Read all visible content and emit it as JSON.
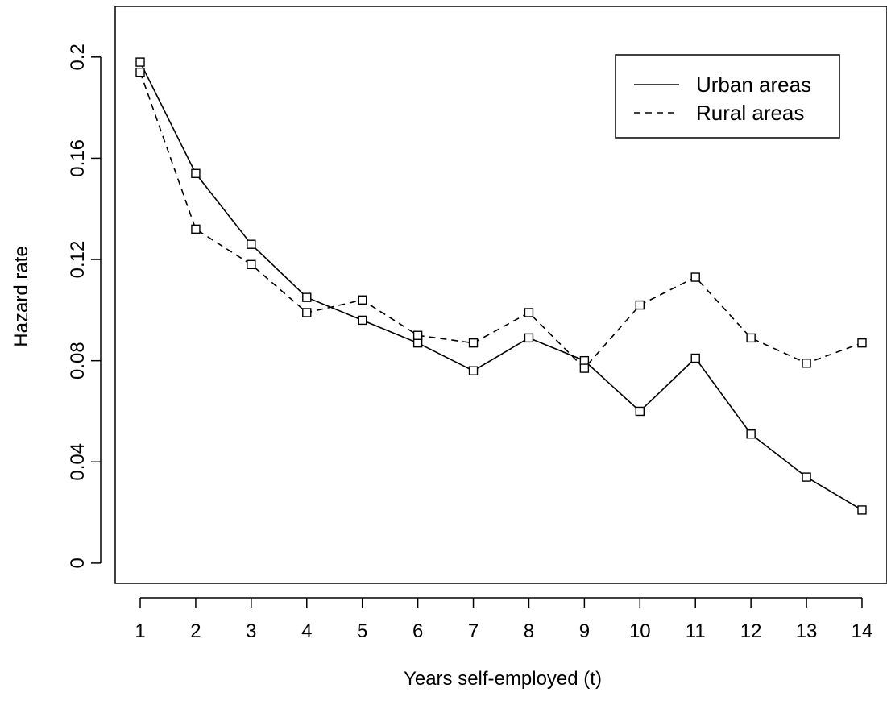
{
  "chart_data": {
    "type": "line",
    "title": "",
    "xlabel": "Years self-employed (t)",
    "ylabel": "Hazard rate",
    "x": [
      1,
      2,
      3,
      4,
      5,
      6,
      7,
      8,
      9,
      10,
      11,
      12,
      13,
      14
    ],
    "x_tick_labels": [
      "1",
      "2",
      "3",
      "4",
      "5",
      "6",
      "7",
      "8",
      "9",
      "10",
      "11",
      "12",
      "13",
      "14"
    ],
    "y_ticks": [
      0,
      0.04,
      0.08,
      0.12,
      0.16,
      0.2
    ],
    "y_tick_labels": [
      "0",
      "0.04",
      "0.08",
      "0.12",
      "0.16",
      "0.2"
    ],
    "xlim": [
      0.55,
      14.45
    ],
    "ylim": [
      -0.008,
      0.22
    ],
    "grid": false,
    "legend_position": "top-right",
    "marker": "open-square",
    "series": [
      {
        "name": "Urban areas",
        "line_style": "solid",
        "values": [
          0.198,
          0.154,
          0.126,
          0.105,
          0.096,
          0.087,
          0.076,
          0.089,
          0.08,
          0.06,
          0.081,
          0.051,
          0.034,
          0.021
        ]
      },
      {
        "name": "Rural areas",
        "line_style": "dashed",
        "values": [
          0.194,
          0.132,
          0.118,
          0.099,
          0.104,
          0.09,
          0.087,
          0.099,
          0.077,
          0.102,
          0.113,
          0.089,
          0.079,
          0.087
        ]
      }
    ]
  }
}
